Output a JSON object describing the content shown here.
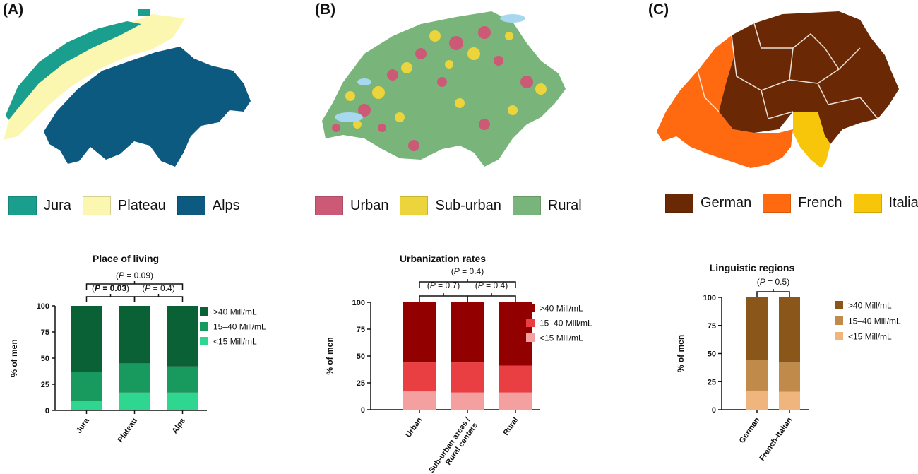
{
  "panels": [
    {
      "label": "(A)",
      "map_legend": [
        {
          "name": "Jura",
          "color": "#1a9e8e"
        },
        {
          "name": "Plateau",
          "color": "#fbf6b0"
        },
        {
          "name": "Alps",
          "color": "#0d5a80"
        }
      ]
    },
    {
      "label": "(B)",
      "map_legend": [
        {
          "name": "Urban",
          "color": "#cc5a76"
        },
        {
          "name": "Sub-urban",
          "color": "#ecd43c"
        },
        {
          "name": "Rural",
          "color": "#79b57a"
        }
      ]
    },
    {
      "label": "(C)",
      "map_legend": [
        {
          "name": "German",
          "color": "#6b2805"
        },
        {
          "name": "French",
          "color": "#ff6a10"
        },
        {
          "name": "Italian",
          "color": "#f7c60a"
        }
      ]
    }
  ],
  "chart_data": [
    {
      "type": "bar",
      "stacked": true,
      "title": "Place of living",
      "ylabel": "% of men",
      "ylim": [
        0,
        100
      ],
      "yticks": [
        0,
        25,
        50,
        75,
        100
      ],
      "categories": [
        "Jura",
        "Plateau",
        "Alps"
      ],
      "series": [
        {
          "name": "<15 Mill/mL",
          "color": "#2ed68f",
          "values": [
            9,
            17,
            17
          ]
        },
        {
          "name": "15–40 Mill/mL",
          "color": "#18995e",
          "values": [
            28,
            28,
            25
          ]
        },
        {
          "name": ">40 Mill/mL",
          "color": "#0b6136",
          "values": [
            63,
            55,
            58
          ]
        }
      ],
      "legend": ">40 Mill/mL, 15–40 Mill/mL, <15 Mill/mL (right)",
      "annotations": [
        {
          "pre": "(",
          "p": "P",
          "mid": " = ",
          "val": "0.09",
          "post": ")",
          "bold": false
        },
        {
          "pre": "(",
          "p": "P",
          "mid": " = ",
          "val": "0.03",
          "post": ")",
          "bold": true
        },
        {
          "pre": "(",
          "p": "P",
          "mid": " = ",
          "val": "0.4",
          "post": ")",
          "bold": false
        }
      ]
    },
    {
      "type": "bar",
      "stacked": true,
      "title": "Urbanization rates",
      "ylabel": "% of men",
      "ylim": [
        0,
        100
      ],
      "yticks": [
        0,
        25,
        50,
        75,
        100
      ],
      "categories": [
        "Urban",
        "Sub-urban areas /\nRural centers",
        "Rural"
      ],
      "series": [
        {
          "name": "<15 Mill/mL",
          "color": "#f5a0a0",
          "values": [
            17,
            16,
            16
          ]
        },
        {
          "name": "15–40 Mill/mL",
          "color": "#ea3f42",
          "values": [
            27,
            28,
            25
          ]
        },
        {
          "name": ">40 Mill/mL",
          "color": "#930000",
          "values": [
            56,
            56,
            59
          ]
        }
      ],
      "legend": ">40 Mill/mL, 15–40 Mill/mL, <15 Mill/mL (right)",
      "annotations": [
        {
          "pre": "(",
          "p": "P",
          "mid": " = ",
          "val": "0.4",
          "post": ")",
          "bold": false
        },
        {
          "pre": "(",
          "p": "P",
          "mid": " = ",
          "val": "0.7",
          "post": ")",
          "bold": false
        },
        {
          "pre": "(",
          "p": "P",
          "mid": " = ",
          "val": "0.4",
          "post": ")",
          "bold": false
        }
      ]
    },
    {
      "type": "bar",
      "stacked": true,
      "title": "Linguistic regions",
      "ylabel": "% of men",
      "ylim": [
        0,
        100
      ],
      "yticks": [
        0,
        25,
        50,
        75,
        100
      ],
      "categories": [
        "German",
        "French-Italian"
      ],
      "series": [
        {
          "name": "<15 Mill/mL",
          "color": "#efb57c",
          "values": [
            17,
            16
          ]
        },
        {
          "name": "15–40 Mill/mL",
          "color": "#c08a4a",
          "values": [
            27,
            26
          ]
        },
        {
          "name": ">40 Mill/mL",
          "color": "#8a5619",
          "values": [
            56,
            58
          ]
        }
      ],
      "legend": ">40 Mill/mL, 15–40 Mill/mL, <15 Mill/mL (right)",
      "annotations": [
        {
          "pre": "(",
          "p": "P",
          "mid": " = ",
          "val": "0.5",
          "post": ")",
          "bold": false
        }
      ]
    }
  ]
}
